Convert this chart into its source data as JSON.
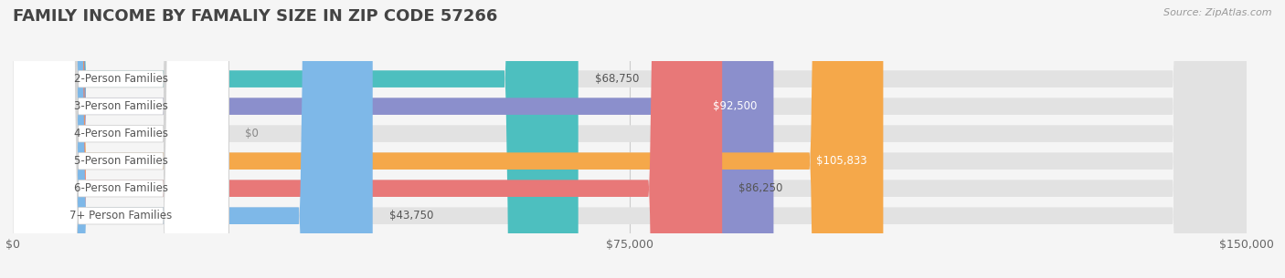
{
  "title": "FAMILY INCOME BY FAMALIY SIZE IN ZIP CODE 57266",
  "source_text": "Source: ZipAtlas.com",
  "categories": [
    "2-Person Families",
    "3-Person Families",
    "4-Person Families",
    "5-Person Families",
    "6-Person Families",
    "7+ Person Families"
  ],
  "values": [
    68750,
    92500,
    0,
    105833,
    86250,
    43750
  ],
  "bar_colors": [
    "#4DBFBF",
    "#8B8FCC",
    "#F4A0C0",
    "#F5A84A",
    "#E87878",
    "#7EB8E8"
  ],
  "xlim": [
    0,
    150000
  ],
  "xticks": [
    0,
    75000,
    150000
  ],
  "xticklabels": [
    "$0",
    "$75,000",
    "$150,000"
  ],
  "background_color": "#f5f5f5",
  "bar_bg_color": "#e2e2e2",
  "title_fontsize": 13,
  "label_fontsize": 8.5,
  "value_fontsize": 8.5
}
